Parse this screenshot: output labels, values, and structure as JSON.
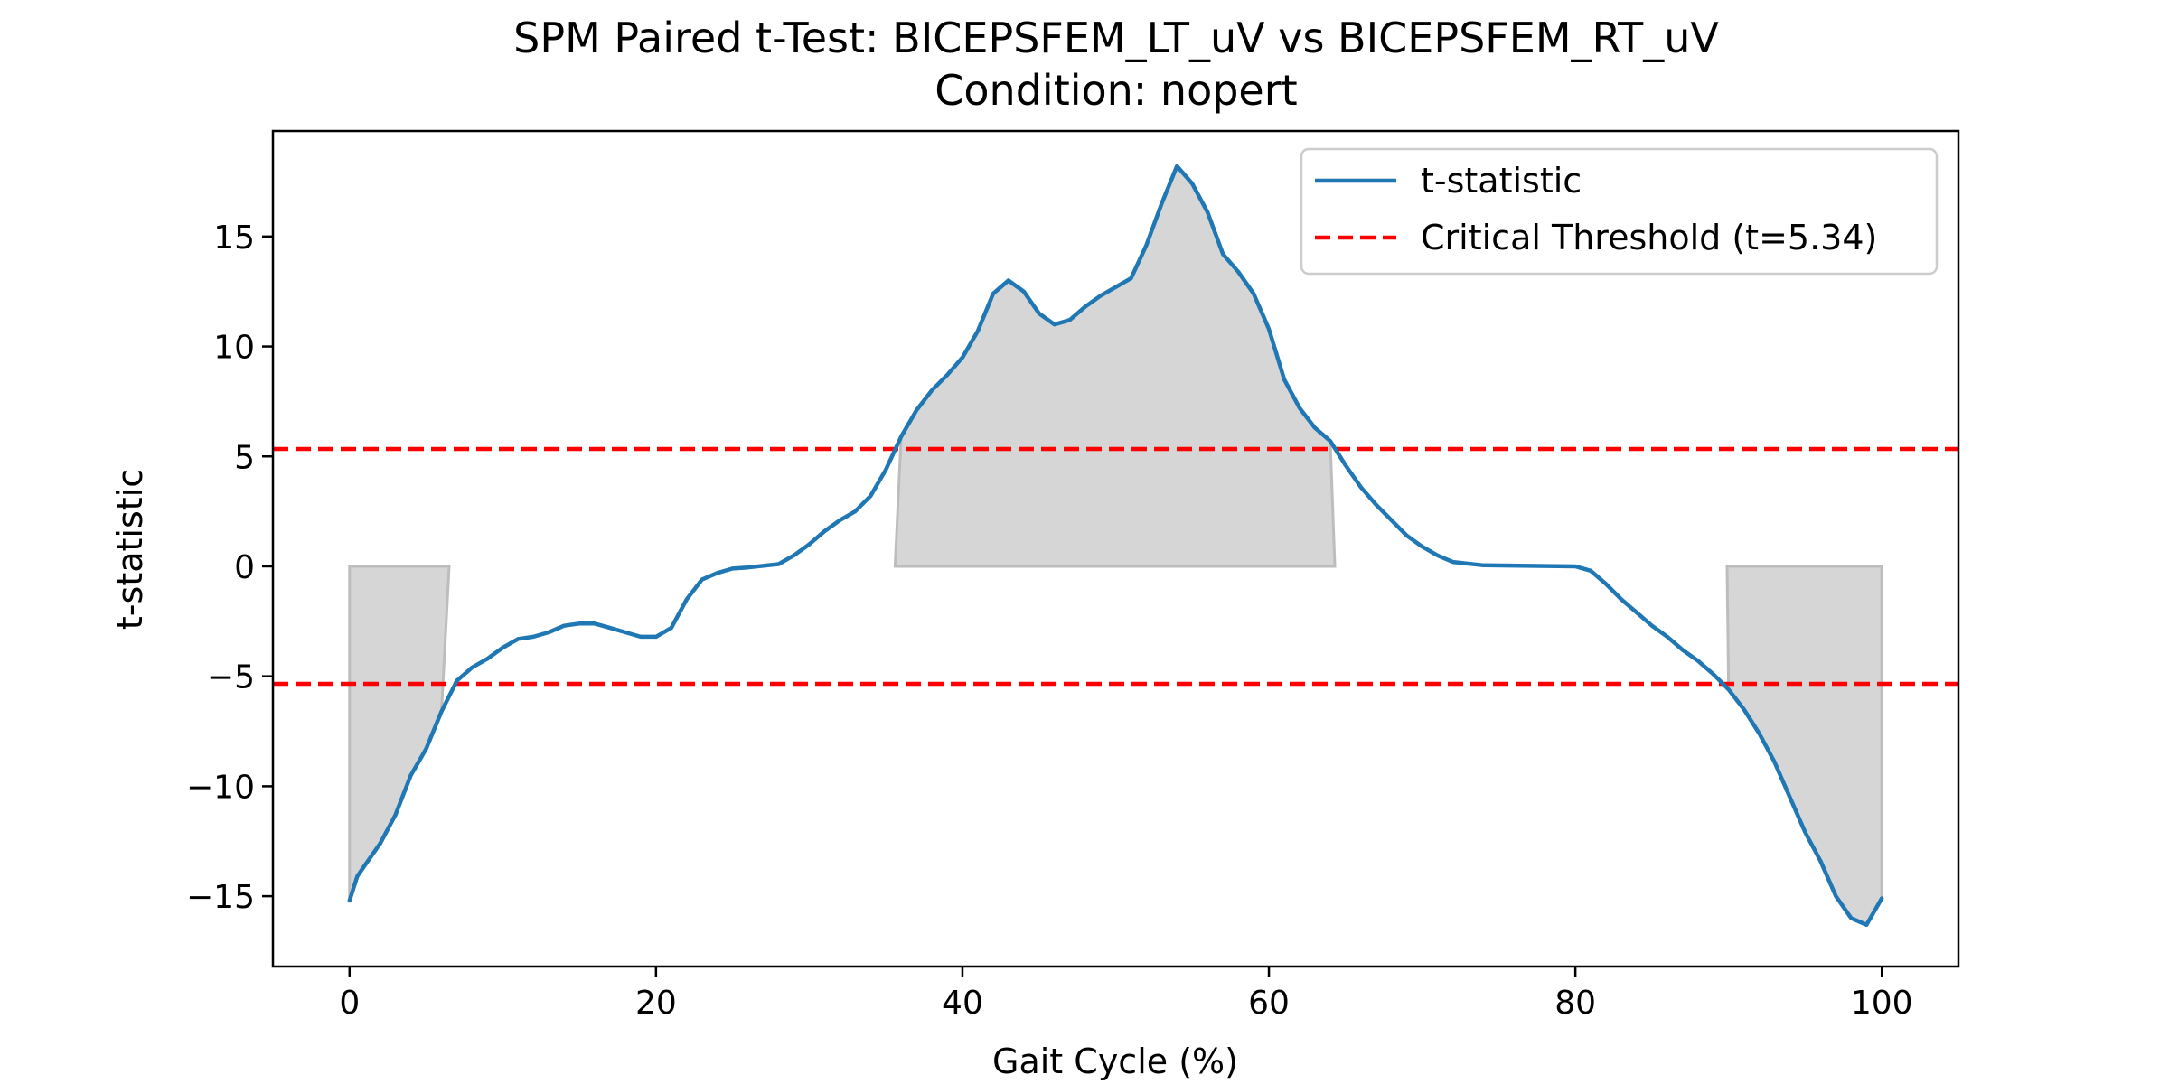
{
  "chart_data": {
    "type": "line",
    "title": "SPM Paired t-Test: BICEPSFEM_LT_uV vs BICEPSFEM_RT_uV",
    "subtitle": "Condition: nopert",
    "xlabel": "Gait Cycle (%)",
    "ylabel": "t-statistic",
    "xlim": [
      -5,
      105
    ],
    "ylim": [
      -18.2,
      19.8
    ],
    "xticks": [
      0,
      20,
      40,
      60,
      80,
      100
    ],
    "yticks": [
      -15,
      -10,
      -5,
      0,
      5,
      10,
      15
    ],
    "grid": false,
    "legend_position": "top-right",
    "series": [
      {
        "name": "t-statistic",
        "color": "#1f77b4",
        "style": "solid",
        "points": [
          [
            0,
            -15.2
          ],
          [
            0.5,
            -14.1
          ],
          [
            1,
            -13.6
          ],
          [
            2,
            -12.6
          ],
          [
            3,
            -11.3
          ],
          [
            4,
            -9.5
          ],
          [
            5,
            -8.3
          ],
          [
            6,
            -6.6
          ],
          [
            7,
            -5.2
          ],
          [
            8,
            -4.6
          ],
          [
            9,
            -4.2
          ],
          [
            10,
            -3.7
          ],
          [
            11,
            -3.3
          ],
          [
            12,
            -3.2
          ],
          [
            13,
            -3.0
          ],
          [
            14,
            -2.7
          ],
          [
            15,
            -2.6
          ],
          [
            16,
            -2.6
          ],
          [
            17,
            -2.8
          ],
          [
            18,
            -3.0
          ],
          [
            19,
            -3.2
          ],
          [
            20,
            -3.2
          ],
          [
            21,
            -2.8
          ],
          [
            22,
            -1.5
          ],
          [
            23,
            -0.6
          ],
          [
            24,
            -0.3
          ],
          [
            25,
            -0.1
          ],
          [
            26,
            -0.05
          ],
          [
            28,
            0.1
          ],
          [
            29,
            0.5
          ],
          [
            30,
            1.0
          ],
          [
            31,
            1.6
          ],
          [
            32,
            2.1
          ],
          [
            33,
            2.5
          ],
          [
            34,
            3.2
          ],
          [
            35,
            4.4
          ],
          [
            36,
            5.9
          ],
          [
            37,
            7.1
          ],
          [
            38,
            8.0
          ],
          [
            39,
            8.7
          ],
          [
            40,
            9.5
          ],
          [
            41,
            10.7
          ],
          [
            42,
            12.4
          ],
          [
            43,
            13.0
          ],
          [
            44,
            12.5
          ],
          [
            45,
            11.5
          ],
          [
            46,
            11.0
          ],
          [
            47,
            11.2
          ],
          [
            48,
            11.8
          ],
          [
            49,
            12.3
          ],
          [
            50,
            12.7
          ],
          [
            51,
            13.1
          ],
          [
            52,
            14.6
          ],
          [
            53,
            16.5
          ],
          [
            54,
            18.2
          ],
          [
            55,
            17.4
          ],
          [
            56,
            16.1
          ],
          [
            57,
            14.2
          ],
          [
            58,
            13.4
          ],
          [
            59,
            12.4
          ],
          [
            60,
            10.8
          ],
          [
            61,
            8.5
          ],
          [
            62,
            7.2
          ],
          [
            63,
            6.3
          ],
          [
            64,
            5.7
          ],
          [
            65,
            4.6
          ],
          [
            66,
            3.6
          ],
          [
            67,
            2.8
          ],
          [
            68,
            2.1
          ],
          [
            69,
            1.4
          ],
          [
            70,
            0.9
          ],
          [
            71,
            0.5
          ],
          [
            72,
            0.2
          ],
          [
            74,
            0.05
          ],
          [
            80,
            0.0
          ],
          [
            81,
            -0.2
          ],
          [
            82,
            -0.8
          ],
          [
            83,
            -1.5
          ],
          [
            84,
            -2.1
          ],
          [
            85,
            -2.7
          ],
          [
            86,
            -3.2
          ],
          [
            87,
            -3.8
          ],
          [
            88,
            -4.3
          ],
          [
            89,
            -4.9
          ],
          [
            90,
            -5.6
          ],
          [
            91,
            -6.5
          ],
          [
            92,
            -7.6
          ],
          [
            93,
            -8.9
          ],
          [
            94,
            -10.5
          ],
          [
            95,
            -12.1
          ],
          [
            96,
            -13.4
          ],
          [
            97,
            -15.0
          ],
          [
            98,
            -16.0
          ],
          [
            99,
            -16.3
          ],
          [
            100,
            -15.1
          ]
        ]
      },
      {
        "name": "Critical Threshold (t=5.34)",
        "color": "#ff0000",
        "style": "dashed",
        "y_constant": [
          5.34,
          -5.34
        ]
      }
    ],
    "significance_regions": [
      {
        "x_start": 0,
        "x_end": 6.5,
        "sign": "negative"
      },
      {
        "x_start": 35.6,
        "x_end": 64.3,
        "sign": "positive"
      },
      {
        "x_start": 89.9,
        "x_end": 100,
        "sign": "negative"
      }
    ],
    "colors": {
      "line": "#1f77b4",
      "threshold": "#ff0000",
      "shade": "#d6d6d6",
      "shade_edge": "#bdbdbd"
    }
  }
}
